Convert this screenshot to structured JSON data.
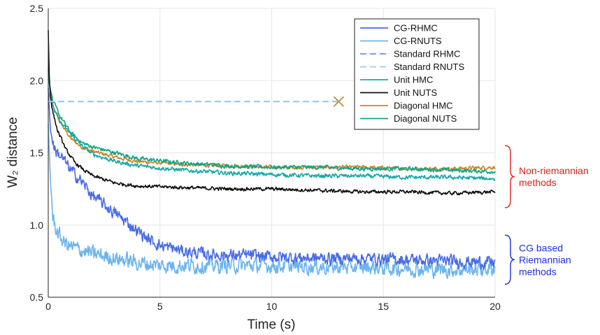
{
  "chart_data": {
    "type": "line",
    "title": "",
    "xlabel": "Time (s)",
    "ylabel": "W₂ distance",
    "xlim": [
      0,
      20
    ],
    "ylim": [
      0.5,
      2.5
    ],
    "x_ticks": [
      0,
      5,
      10,
      15,
      20
    ],
    "x_tick_labels": [
      "0",
      "5",
      "10",
      "15",
      "20"
    ],
    "y_ticks": [
      0.5,
      1.0,
      1.5,
      2.0,
      2.5
    ],
    "y_tick_labels": [
      "0.5",
      "1.0",
      "1.5",
      "2.0",
      "2.5"
    ],
    "grid": true,
    "legend_position": "top-right",
    "series": [
      {
        "name": "CG-RHMC",
        "color": "#4A6CE8",
        "dash": "solid",
        "noise": 0.035,
        "points": [
          [
            0,
            1.95
          ],
          [
            0.1,
            1.65
          ],
          [
            0.3,
            1.52
          ],
          [
            0.6,
            1.47
          ],
          [
            1,
            1.38
          ],
          [
            1.5,
            1.3
          ],
          [
            2,
            1.2
          ],
          [
            2.5,
            1.14
          ],
          [
            3,
            1.08
          ],
          [
            3.5,
            1.02
          ],
          [
            4,
            0.96
          ],
          [
            4.5,
            0.9
          ],
          [
            5,
            0.86
          ],
          [
            6,
            0.82
          ],
          [
            7,
            0.8
          ],
          [
            8,
            0.79
          ],
          [
            9,
            0.79
          ],
          [
            10,
            0.78
          ],
          [
            12,
            0.77
          ],
          [
            14,
            0.77
          ],
          [
            16,
            0.76
          ],
          [
            18,
            0.75
          ],
          [
            20,
            0.74
          ]
        ]
      },
      {
        "name": "CG-RNUTS",
        "color": "#6CB4EE",
        "dash": "solid",
        "noise": 0.045,
        "points": [
          [
            0,
            1.7
          ],
          [
            0.1,
            1.3
          ],
          [
            0.2,
            1.05
          ],
          [
            0.4,
            0.95
          ],
          [
            0.7,
            0.88
          ],
          [
            1,
            0.85
          ],
          [
            2,
            0.8
          ],
          [
            3,
            0.77
          ],
          [
            4,
            0.74
          ],
          [
            5,
            0.72
          ],
          [
            6,
            0.72
          ],
          [
            8,
            0.72
          ],
          [
            10,
            0.72
          ],
          [
            12,
            0.71
          ],
          [
            14,
            0.71
          ],
          [
            16,
            0.7
          ],
          [
            18,
            0.69
          ],
          [
            20,
            0.7
          ]
        ]
      },
      {
        "name": "Standard RHMC",
        "color": "#6C8EF0",
        "dash": "dashed",
        "noise": 0,
        "points": [
          [
            0,
            1.855
          ],
          [
            13,
            1.855
          ]
        ]
      },
      {
        "name": "Standard RNUTS",
        "color": "#9CCAF0",
        "dash": "dashed",
        "noise": 0,
        "points": [
          [
            0,
            1.855
          ],
          [
            13,
            1.855
          ]
        ]
      },
      {
        "name": "Unit HMC",
        "color": "#1AA8A8",
        "dash": "solid",
        "noise": 0.012,
        "points": [
          [
            0,
            2.08
          ],
          [
            0.1,
            1.9
          ],
          [
            0.3,
            1.78
          ],
          [
            0.6,
            1.7
          ],
          [
            1,
            1.63
          ],
          [
            1.5,
            1.55
          ],
          [
            2,
            1.49
          ],
          [
            3,
            1.44
          ],
          [
            4,
            1.41
          ],
          [
            6,
            1.38
          ],
          [
            8,
            1.36
          ],
          [
            10,
            1.35
          ],
          [
            12,
            1.34
          ],
          [
            14,
            1.34
          ],
          [
            16,
            1.33
          ],
          [
            18,
            1.33
          ],
          [
            20,
            1.32
          ]
        ]
      },
      {
        "name": "Unit NUTS",
        "color": "#111111",
        "dash": "solid",
        "noise": 0.01,
        "points": [
          [
            0,
            2.35
          ],
          [
            0.05,
            2.0
          ],
          [
            0.15,
            1.82
          ],
          [
            0.4,
            1.66
          ],
          [
            0.8,
            1.52
          ],
          [
            1.2,
            1.43
          ],
          [
            1.6,
            1.38
          ],
          [
            2,
            1.34
          ],
          [
            3,
            1.29
          ],
          [
            4,
            1.27
          ],
          [
            6,
            1.26
          ],
          [
            8,
            1.25
          ],
          [
            10,
            1.25
          ],
          [
            12,
            1.24
          ],
          [
            14,
            1.23
          ],
          [
            16,
            1.23
          ],
          [
            18,
            1.22
          ],
          [
            20,
            1.23
          ]
        ]
      },
      {
        "name": "Diagonal HMC",
        "color": "#C9862A",
        "dash": "solid",
        "noise": 0.011,
        "points": [
          [
            0,
            1.93
          ],
          [
            0.2,
            1.82
          ],
          [
            0.5,
            1.72
          ],
          [
            1,
            1.6
          ],
          [
            1.5,
            1.54
          ],
          [
            2,
            1.51
          ],
          [
            3,
            1.47
          ],
          [
            4,
            1.44
          ],
          [
            6,
            1.42
          ],
          [
            8,
            1.41
          ],
          [
            10,
            1.4
          ],
          [
            12,
            1.4
          ],
          [
            14,
            1.4
          ],
          [
            16,
            1.39
          ],
          [
            18,
            1.39
          ],
          [
            20,
            1.4
          ]
        ]
      },
      {
        "name": "Diagonal NUTS",
        "color": "#12A585",
        "dash": "solid",
        "noise": 0.012,
        "points": [
          [
            0,
            2.02
          ],
          [
            0.2,
            1.86
          ],
          [
            0.5,
            1.76
          ],
          [
            1,
            1.64
          ],
          [
            1.5,
            1.57
          ],
          [
            2,
            1.54
          ],
          [
            3,
            1.5
          ],
          [
            4,
            1.46
          ],
          [
            6,
            1.43
          ],
          [
            8,
            1.41
          ],
          [
            10,
            1.4
          ],
          [
            12,
            1.4
          ],
          [
            14,
            1.39
          ],
          [
            16,
            1.39
          ],
          [
            18,
            1.38
          ],
          [
            20,
            1.37
          ]
        ]
      }
    ],
    "markers": [
      {
        "shape": "x",
        "x": 13,
        "y": 1.855,
        "color": "#B8963A"
      }
    ],
    "annotations": [
      {
        "lines": [
          "Non-riemannian",
          "methods"
        ],
        "color": "#E0201C",
        "y_range": [
          1.12,
          1.55
        ]
      },
      {
        "lines": [
          "CG based",
          "Riemannian",
          "methods"
        ],
        "color": "#1C2FE0",
        "y_range": [
          0.59,
          0.93
        ]
      }
    ]
  }
}
